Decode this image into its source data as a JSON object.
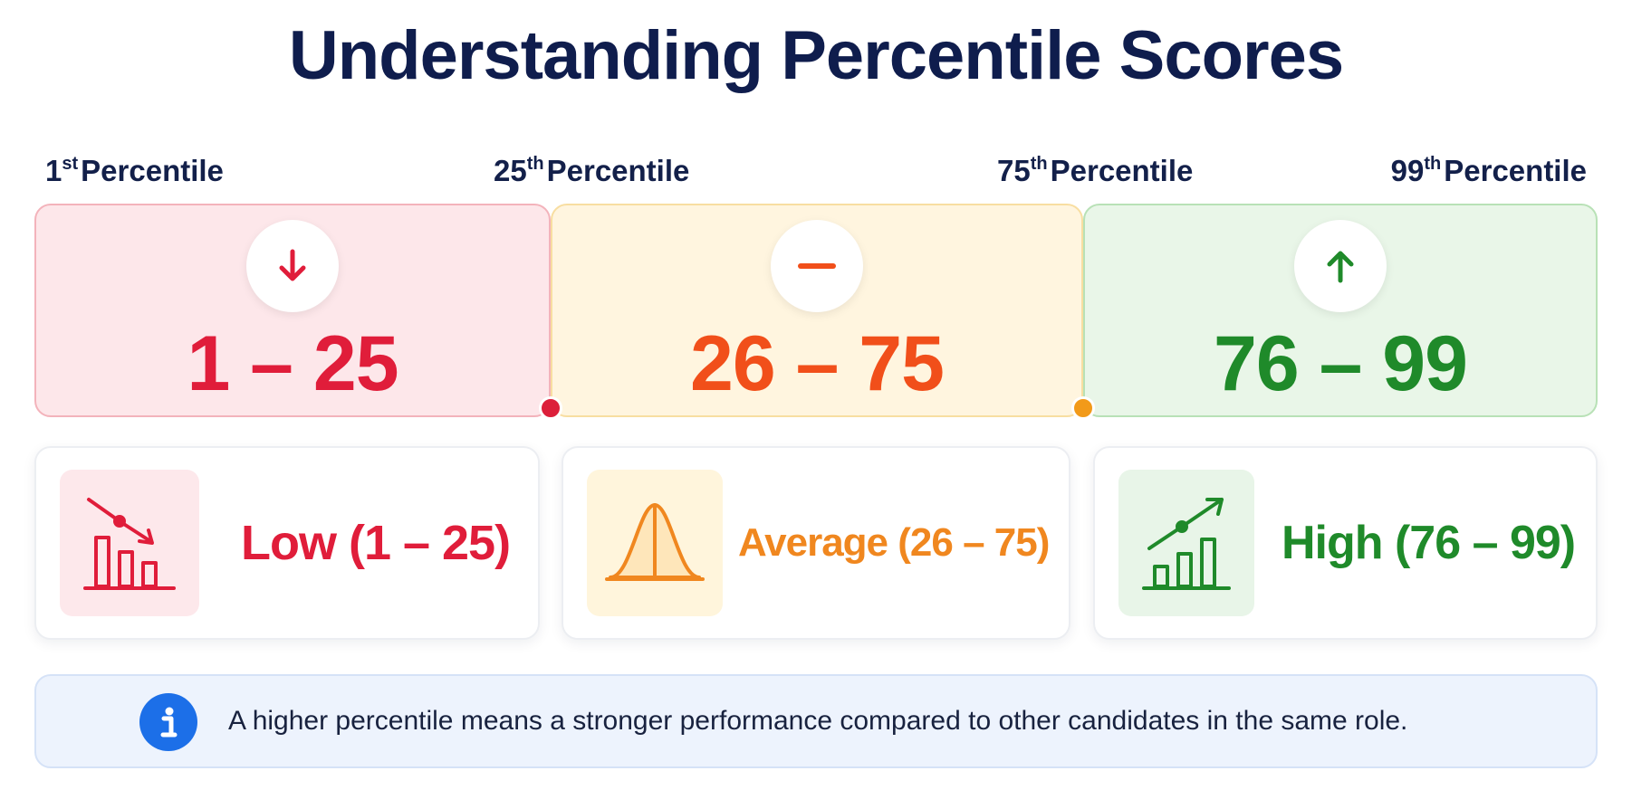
{
  "title": "Understanding Percentile Scores",
  "markers": [
    {
      "num": "1",
      "suffix": "st",
      "text": "Percentile"
    },
    {
      "num": "25",
      "suffix": "th",
      "text": "Percentile"
    },
    {
      "num": "75",
      "suffix": "th",
      "text": "Percentile"
    },
    {
      "num": "99",
      "suffix": "th",
      "text": "Percentile"
    }
  ],
  "bands": [
    {
      "range": "1 – 25",
      "icon": "arrow-down-icon",
      "color": "#e01d3a",
      "fill": "#fde7ea"
    },
    {
      "range": "26 – 75",
      "icon": "minus-icon",
      "color": "#f14f1a",
      "fill": "#fff5df"
    },
    {
      "range": "76 – 99",
      "icon": "arrow-up-icon",
      "color": "#1f8a2a",
      "fill": "#e9f6e8"
    }
  ],
  "cards": [
    {
      "label": "Low (1 – 25)",
      "icon": "declining-bar-chart-icon",
      "color": "#e01d3a"
    },
    {
      "label": "Average (26 – 75)",
      "icon": "bell-curve-icon",
      "color": "#f0871f"
    },
    {
      "label": "High (76 – 99)",
      "icon": "rising-bar-chart-icon",
      "color": "#1f8a2a"
    }
  ],
  "note": {
    "icon": "info-icon",
    "text": "A higher percentile means a stronger performance compared to other candidates in the same role."
  }
}
